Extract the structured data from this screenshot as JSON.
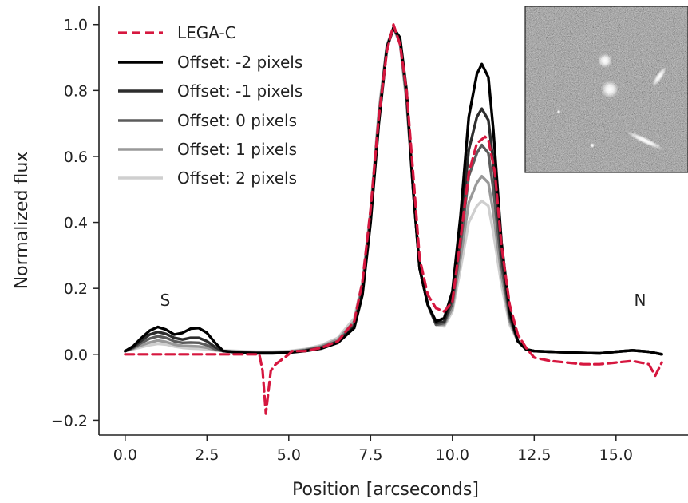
{
  "chart_data": {
    "type": "line",
    "title": "",
    "xlabel": "Position [arcseconds]",
    "ylabel": "Normalized flux",
    "xlim": [
      -0.8,
      17.2
    ],
    "ylim": [
      -0.245,
      1.055
    ],
    "xticks": [
      0.0,
      2.5,
      5.0,
      7.5,
      10.0,
      12.5,
      15.0
    ],
    "xtick_labels": [
      "0.0",
      "2.5",
      "5.0",
      "7.5",
      "10.0",
      "12.5",
      "15.0"
    ],
    "yticks": [
      -0.2,
      0.0,
      0.2,
      0.4,
      0.6,
      0.8,
      1.0
    ],
    "ytick_labels": [
      "−0.2",
      "0.0",
      "0.2",
      "0.4",
      "0.6",
      "0.8",
      "1.0"
    ],
    "grid": false,
    "legend_position": "top-left",
    "annotations": [
      {
        "text": "S",
        "x": 1.2,
        "y": 0.16
      },
      {
        "text": "N",
        "x": 15.7,
        "y": 0.16
      }
    ],
    "inset": "grayscale sky image showing several galaxies",
    "series": [
      {
        "name": "Offset: -2 pixels",
        "color": "#000000",
        "style": "solid",
        "x": [
          0,
          0.25,
          0.5,
          0.75,
          1.0,
          1.25,
          1.5,
          1.75,
          2.0,
          2.25,
          2.5,
          2.75,
          3.0,
          3.5,
          4.0,
          4.5,
          5.0,
          5.5,
          6.0,
          6.5,
          7.0,
          7.25,
          7.5,
          7.75,
          8.0,
          8.2,
          8.4,
          8.6,
          8.8,
          9.0,
          9.25,
          9.5,
          9.75,
          10.0,
          10.25,
          10.5,
          10.75,
          10.9,
          11.1,
          11.25,
          11.5,
          11.75,
          12.0,
          12.25,
          12.5,
          13.0,
          13.5,
          14.0,
          14.5,
          15.0,
          15.5,
          16.0,
          16.4
        ],
        "y": [
          0.01,
          0.025,
          0.05,
          0.072,
          0.083,
          0.075,
          0.06,
          0.065,
          0.078,
          0.08,
          0.065,
          0.035,
          0.01,
          0.005,
          0.003,
          0.003,
          0.005,
          0.01,
          0.018,
          0.035,
          0.08,
          0.18,
          0.4,
          0.7,
          0.93,
          0.99,
          0.96,
          0.8,
          0.5,
          0.26,
          0.15,
          0.1,
          0.11,
          0.19,
          0.42,
          0.72,
          0.85,
          0.88,
          0.84,
          0.68,
          0.34,
          0.13,
          0.04,
          0.015,
          0.01,
          0.008,
          0.006,
          0.004,
          0.003,
          0.008,
          0.012,
          0.008,
          0.0
        ]
      },
      {
        "name": "Offset: -1 pixels",
        "color": "#2d2d2d",
        "style": "solid",
        "x": [
          0,
          0.25,
          0.5,
          0.75,
          1.0,
          1.25,
          1.5,
          1.75,
          2.0,
          2.25,
          2.5,
          2.75,
          3.0,
          3.5,
          4.0,
          4.5,
          5.0,
          5.5,
          6.0,
          6.5,
          7.0,
          7.25,
          7.5,
          7.75,
          8.0,
          8.2,
          8.4,
          8.6,
          8.8,
          9.0,
          9.25,
          9.5,
          9.75,
          10.0,
          10.25,
          10.5,
          10.75,
          10.9,
          11.1,
          11.25,
          11.5,
          11.75,
          12.0,
          12.25,
          12.5,
          13.0,
          13.5,
          14.0,
          14.5,
          15.0,
          15.5,
          16.0,
          16.4
        ],
        "y": [
          0.01,
          0.022,
          0.042,
          0.06,
          0.068,
          0.062,
          0.05,
          0.045,
          0.05,
          0.05,
          0.04,
          0.022,
          0.01,
          0.006,
          0.004,
          0.004,
          0.006,
          0.011,
          0.02,
          0.038,
          0.085,
          0.19,
          0.41,
          0.71,
          0.93,
          0.99,
          0.955,
          0.79,
          0.5,
          0.26,
          0.15,
          0.095,
          0.1,
          0.17,
          0.37,
          0.62,
          0.72,
          0.745,
          0.71,
          0.58,
          0.3,
          0.12,
          0.04,
          0.015,
          0.01,
          0.008,
          0.006,
          0.004,
          0.003,
          0.008,
          0.012,
          0.008,
          0.0
        ]
      },
      {
        "name": "Offset: 0 pixels",
        "color": "#5c5c5c",
        "style": "solid",
        "x": [
          0,
          0.25,
          0.5,
          0.75,
          1.0,
          1.25,
          1.5,
          1.75,
          2.0,
          2.25,
          2.5,
          2.75,
          3.0,
          3.5,
          4.0,
          4.5,
          5.0,
          5.5,
          6.0,
          6.5,
          7.0,
          7.25,
          7.5,
          7.75,
          8.0,
          8.2,
          8.4,
          8.6,
          8.8,
          9.0,
          9.25,
          9.5,
          9.75,
          10.0,
          10.25,
          10.5,
          10.75,
          10.9,
          11.1,
          11.25,
          11.5,
          11.75,
          12.0,
          12.25,
          12.5,
          13.0,
          13.5,
          14.0,
          14.5,
          15.0,
          15.5,
          16.0,
          16.4
        ],
        "y": [
          0.01,
          0.02,
          0.035,
          0.048,
          0.055,
          0.05,
          0.04,
          0.035,
          0.036,
          0.035,
          0.028,
          0.016,
          0.01,
          0.007,
          0.005,
          0.005,
          0.007,
          0.012,
          0.022,
          0.04,
          0.09,
          0.2,
          0.42,
          0.72,
          0.935,
          0.99,
          0.95,
          0.78,
          0.5,
          0.26,
          0.15,
          0.09,
          0.095,
          0.155,
          0.33,
          0.54,
          0.61,
          0.635,
          0.61,
          0.5,
          0.27,
          0.11,
          0.04,
          0.015,
          0.01,
          0.008,
          0.006,
          0.004,
          0.003,
          0.008,
          0.012,
          0.008,
          0.0
        ]
      },
      {
        "name": "Offset: 1 pixels",
        "color": "#999999",
        "style": "solid",
        "x": [
          0,
          0.25,
          0.5,
          0.75,
          1.0,
          1.25,
          1.5,
          1.75,
          2.0,
          2.25,
          2.5,
          2.75,
          3.0,
          3.5,
          4.0,
          4.5,
          5.0,
          5.5,
          6.0,
          6.5,
          7.0,
          7.25,
          7.5,
          7.75,
          8.0,
          8.2,
          8.4,
          8.6,
          8.8,
          9.0,
          9.25,
          9.5,
          9.75,
          10.0,
          10.25,
          10.5,
          10.75,
          10.9,
          11.1,
          11.25,
          11.5,
          11.75,
          12.0,
          12.25,
          12.5,
          13.0,
          13.5,
          14.0,
          14.5,
          15.0,
          15.5,
          16.0,
          16.4
        ],
        "y": [
          0.01,
          0.018,
          0.028,
          0.036,
          0.042,
          0.038,
          0.03,
          0.026,
          0.025,
          0.024,
          0.02,
          0.013,
          0.01,
          0.008,
          0.006,
          0.006,
          0.008,
          0.014,
          0.025,
          0.045,
          0.1,
          0.21,
          0.43,
          0.73,
          0.935,
          0.99,
          0.945,
          0.77,
          0.5,
          0.26,
          0.15,
          0.09,
          0.09,
          0.14,
          0.29,
          0.46,
          0.52,
          0.54,
          0.52,
          0.43,
          0.24,
          0.1,
          0.04,
          0.015,
          0.01,
          0.008,
          0.006,
          0.004,
          0.003,
          0.008,
          0.012,
          0.008,
          0.0
        ]
      },
      {
        "name": "Offset: 2 pixels",
        "color": "#cfcfcf",
        "style": "solid",
        "x": [
          0,
          0.25,
          0.5,
          0.75,
          1.0,
          1.25,
          1.5,
          1.75,
          2.0,
          2.25,
          2.5,
          2.75,
          3.0,
          3.5,
          4.0,
          4.5,
          5.0,
          5.5,
          6.0,
          6.5,
          7.0,
          7.25,
          7.5,
          7.75,
          8.0,
          8.2,
          8.4,
          8.6,
          8.8,
          9.0,
          9.25,
          9.5,
          9.75,
          10.0,
          10.25,
          10.5,
          10.75,
          10.9,
          11.1,
          11.25,
          11.5,
          11.75,
          12.0,
          12.25,
          12.5,
          13.0,
          13.5,
          14.0,
          14.5,
          15.0,
          15.5,
          16.0,
          16.4
        ],
        "y": [
          0.01,
          0.016,
          0.022,
          0.028,
          0.032,
          0.03,
          0.024,
          0.02,
          0.018,
          0.017,
          0.015,
          0.012,
          0.012,
          0.01,
          0.008,
          0.008,
          0.01,
          0.016,
          0.028,
          0.05,
          0.11,
          0.22,
          0.44,
          0.74,
          0.94,
          0.99,
          0.94,
          0.76,
          0.5,
          0.26,
          0.15,
          0.09,
          0.085,
          0.13,
          0.26,
          0.4,
          0.45,
          0.465,
          0.45,
          0.37,
          0.21,
          0.09,
          0.04,
          0.015,
          0.01,
          0.008,
          0.006,
          0.004,
          0.003,
          0.008,
          0.012,
          0.008,
          0.0
        ]
      },
      {
        "name": "LEGA-C",
        "color": "#d6173f",
        "style": "dashed",
        "x": [
          0,
          1.0,
          2.0,
          3.0,
          3.8,
          4.1,
          4.2,
          4.3,
          4.45,
          4.6,
          5.0,
          5.1,
          5.5,
          6.0,
          6.5,
          7.0,
          7.25,
          7.5,
          7.75,
          8.0,
          8.2,
          8.4,
          8.6,
          8.8,
          9.0,
          9.25,
          9.5,
          9.75,
          10.0,
          10.25,
          10.5,
          10.75,
          11.0,
          11.1,
          11.3,
          11.5,
          11.75,
          12.0,
          12.25,
          12.5,
          13.0,
          13.5,
          14.0,
          14.5,
          15.0,
          15.5,
          16.0,
          16.2,
          16.4
        ],
        "y": [
          0.0,
          0.0,
          0.0,
          0.0,
          0.0,
          0.0,
          -0.05,
          -0.18,
          -0.05,
          -0.03,
          0.0,
          0.01,
          0.01,
          0.02,
          0.04,
          0.1,
          0.22,
          0.44,
          0.72,
          0.92,
          1.0,
          0.94,
          0.8,
          0.55,
          0.29,
          0.18,
          0.14,
          0.13,
          0.16,
          0.35,
          0.55,
          0.64,
          0.66,
          0.65,
          0.55,
          0.33,
          0.15,
          0.06,
          0.02,
          -0.01,
          -0.02,
          -0.025,
          -0.03,
          -0.03,
          -0.025,
          -0.02,
          -0.03,
          -0.065,
          -0.025
        ]
      }
    ]
  }
}
